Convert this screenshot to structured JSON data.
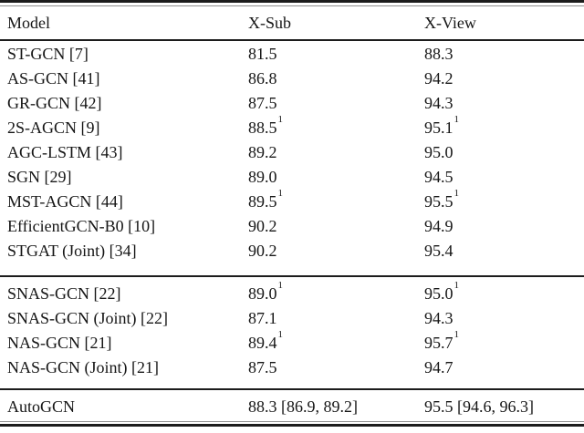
{
  "table": {
    "columns": [
      {
        "key": "model",
        "label": "Model"
      },
      {
        "key": "xsub",
        "label": "X-Sub"
      },
      {
        "key": "xview",
        "label": "X-View"
      }
    ],
    "footnote_marker": "1",
    "groups": [
      {
        "rows": [
          {
            "model": {
              "text": "ST-GCN [7]",
              "sup": ""
            },
            "xsub": {
              "text": "81.5",
              "sup": ""
            },
            "xview": {
              "text": "88.3",
              "sup": ""
            }
          },
          {
            "model": {
              "text": "AS-GCN [41]",
              "sup": ""
            },
            "xsub": {
              "text": "86.8",
              "sup": ""
            },
            "xview": {
              "text": "94.2",
              "sup": ""
            }
          },
          {
            "model": {
              "text": "GR-GCN [42]",
              "sup": ""
            },
            "xsub": {
              "text": "87.5",
              "sup": ""
            },
            "xview": {
              "text": "94.3",
              "sup": ""
            }
          },
          {
            "model": {
              "text": "2S-AGCN [9]",
              "sup": ""
            },
            "xsub": {
              "text": "88.5",
              "sup": "1"
            },
            "xview": {
              "text": "95.1",
              "sup": "1"
            }
          },
          {
            "model": {
              "text": "AGC-LSTM [43]",
              "sup": ""
            },
            "xsub": {
              "text": "89.2",
              "sup": ""
            },
            "xview": {
              "text": "95.0",
              "sup": ""
            }
          },
          {
            "model": {
              "text": "SGN [29]",
              "sup": ""
            },
            "xsub": {
              "text": "89.0",
              "sup": ""
            },
            "xview": {
              "text": "94.5",
              "sup": ""
            }
          },
          {
            "model": {
              "text": "MST-AGCN [44]",
              "sup": ""
            },
            "xsub": {
              "text": "89.5",
              "sup": "1"
            },
            "xview": {
              "text": "95.5",
              "sup": "1"
            }
          },
          {
            "model": {
              "text": "EfficientGCN-B0 [10]",
              "sup": ""
            },
            "xsub": {
              "text": "90.2",
              "sup": ""
            },
            "xview": {
              "text": "94.9",
              "sup": ""
            }
          },
          {
            "model": {
              "text": "STGAT (Joint) [34]",
              "sup": ""
            },
            "xsub": {
              "text": "90.2",
              "sup": ""
            },
            "xview": {
              "text": "95.4",
              "sup": ""
            }
          }
        ]
      },
      {
        "rows": [
          {
            "model": {
              "text": "SNAS-GCN [22]",
              "sup": ""
            },
            "xsub": {
              "text": "89.0",
              "sup": "1"
            },
            "xview": {
              "text": "95.0",
              "sup": "1"
            }
          },
          {
            "model": {
              "text": "SNAS-GCN (Joint) [22]",
              "sup": ""
            },
            "xsub": {
              "text": "87.1",
              "sup": ""
            },
            "xview": {
              "text": "94.3",
              "sup": ""
            }
          },
          {
            "model": {
              "text": "NAS-GCN [21]",
              "sup": ""
            },
            "xsub": {
              "text": "89.4",
              "sup": "1"
            },
            "xview": {
              "text": "95.7",
              "sup": "1"
            }
          },
          {
            "model": {
              "text": "NAS-GCN (Joint) [21]",
              "sup": ""
            },
            "xsub": {
              "text": "87.5",
              "sup": ""
            },
            "xview": {
              "text": "94.7",
              "sup": ""
            }
          }
        ]
      },
      {
        "rows": [
          {
            "model": {
              "text": "AutoGCN",
              "sup": ""
            },
            "xsub": {
              "text": "88.3 [86.9, 89.2]",
              "sup": ""
            },
            "xview": {
              "text": "95.5 [94.6, 96.3]",
              "sup": ""
            }
          }
        ]
      }
    ]
  }
}
